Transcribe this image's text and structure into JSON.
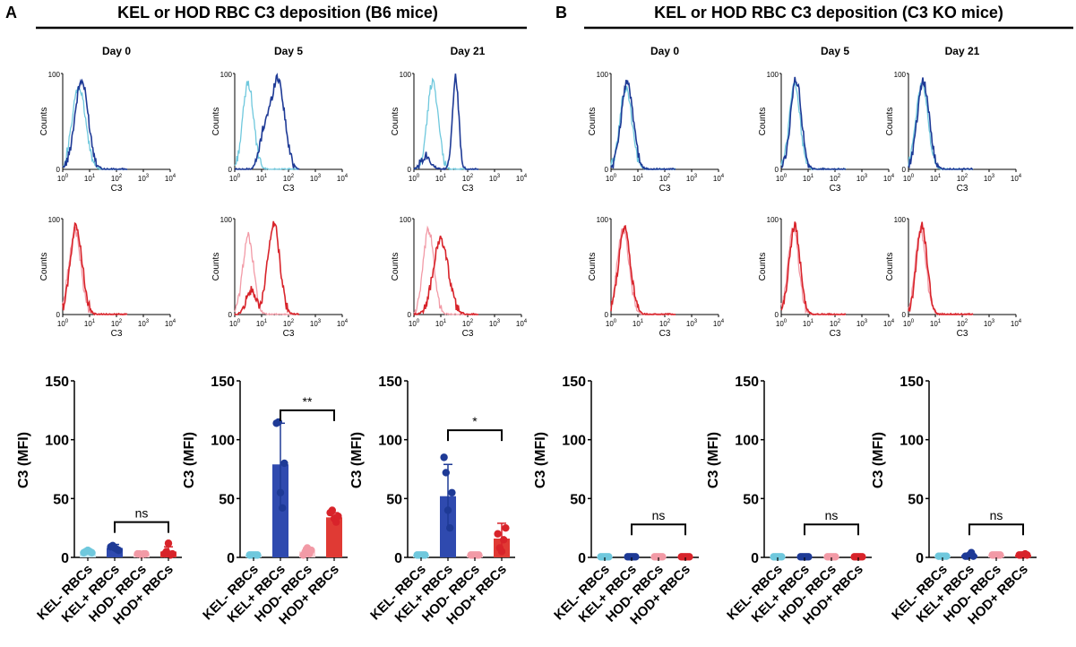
{
  "panels": [
    {
      "letter": "A",
      "title": "KEL or HOD RBC C3 deposition (B6 mice)"
    },
    {
      "letter": "B",
      "title": "KEL or HOD RBC C3 deposition (C3 KO mice)"
    }
  ],
  "colors": {
    "kel_neg": "#6fc8dd",
    "kel_pos": "#1e3a96",
    "hod_neg": "#f29aa6",
    "hod_pos": "#d8232a",
    "bar_kel_neg": "#c9eaf4",
    "bar_kel_pos": "#2f4aaf",
    "bar_hod_neg": "#fbd0d5",
    "bar_hod_pos": "#e03a34"
  },
  "histogram_axis": {
    "xlabel": "C3",
    "ylabel": "Counts",
    "y_ticks": [
      "0",
      "100"
    ],
    "x_tick_exponents": [
      "0",
      "1",
      "2",
      "3",
      "4"
    ],
    "x_tick_base": "10"
  },
  "chart_data": [
    {
      "type": "line",
      "panel": "A",
      "day": "Day 0",
      "cell": "KEL",
      "xscale": "log",
      "xlim": [
        1,
        10000
      ],
      "ylim": [
        0,
        100
      ],
      "xlabel": "C3",
      "ylabel": "Counts",
      "series": [
        {
          "name": "KEL- RBCs",
          "peak_log10": 0.6,
          "width": 0.25,
          "max": 85
        },
        {
          "name": "KEL+ RBCs",
          "peak_log10": 0.7,
          "width": 0.25,
          "max": 92
        }
      ]
    },
    {
      "type": "line",
      "panel": "A",
      "day": "Day 5",
      "cell": "KEL",
      "xscale": "log",
      "xlim": [
        1,
        10000
      ],
      "ylim": [
        0,
        100
      ],
      "xlabel": "C3",
      "ylabel": "Counts",
      "series": [
        {
          "name": "KEL- RBCs",
          "peak_log10": 0.5,
          "width": 0.2,
          "max": 90
        },
        {
          "name": "KEL+ RBCs",
          "peak_log10": 1.6,
          "width": 0.25,
          "max": 95,
          "shoulder_log10": 1.1,
          "shoulder_max": 35
        }
      ]
    },
    {
      "type": "line",
      "panel": "A",
      "day": "Day 21",
      "cell": "KEL",
      "xscale": "log",
      "xlim": [
        1,
        10000
      ],
      "ylim": [
        0,
        100
      ],
      "xlabel": "C3",
      "ylabel": "Counts",
      "series": [
        {
          "name": "KEL- RBCs",
          "peak_log10": 0.7,
          "width": 0.2,
          "max": 92
        },
        {
          "name": "KEL+ RBCs",
          "peak_log10": 1.55,
          "width": 0.12,
          "max": 95,
          "shoulder_log10": 0.45,
          "shoulder_max": 15
        }
      ]
    },
    {
      "type": "line",
      "panel": "A",
      "day": "Day 0",
      "cell": "HOD",
      "xscale": "log",
      "xlim": [
        1,
        10000
      ],
      "ylim": [
        0,
        100
      ],
      "xlabel": "C3",
      "ylabel": "Counts",
      "series": [
        {
          "name": "HOD- RBCs",
          "peak_log10": 0.45,
          "width": 0.22,
          "max": 88
        },
        {
          "name": "HOD+ RBCs",
          "peak_log10": 0.5,
          "width": 0.22,
          "max": 93
        }
      ]
    },
    {
      "type": "line",
      "panel": "A",
      "day": "Day 5",
      "cell": "HOD",
      "xscale": "log",
      "xlim": [
        1,
        10000
      ],
      "ylim": [
        0,
        100
      ],
      "xlabel": "C3",
      "ylabel": "Counts",
      "series": [
        {
          "name": "HOD- RBCs",
          "peak_log10": 0.5,
          "width": 0.2,
          "max": 82
        },
        {
          "name": "HOD+ RBCs",
          "peak_log10": 1.45,
          "width": 0.22,
          "max": 96,
          "shoulder_log10": 0.6,
          "shoulder_max": 25
        }
      ]
    },
    {
      "type": "line",
      "panel": "A",
      "day": "Day 21",
      "cell": "HOD",
      "xscale": "log",
      "xlim": [
        1,
        10000
      ],
      "ylim": [
        0,
        100
      ],
      "xlabel": "C3",
      "ylabel": "Counts",
      "series": [
        {
          "name": "HOD- RBCs",
          "peak_log10": 0.55,
          "width": 0.2,
          "max": 88
        },
        {
          "name": "HOD+ RBCs",
          "peak_log10": 1.0,
          "width": 0.28,
          "max": 78
        }
      ]
    },
    {
      "type": "line",
      "panel": "B",
      "day": "Day 0",
      "cell": "KEL",
      "xscale": "log",
      "xlim": [
        1,
        10000
      ],
      "ylim": [
        0,
        100
      ],
      "xlabel": "C3",
      "ylabel": "Counts",
      "series": [
        {
          "name": "KEL- RBCs",
          "peak_log10": 0.55,
          "width": 0.22,
          "max": 85
        },
        {
          "name": "KEL+ RBCs",
          "peak_log10": 0.6,
          "width": 0.22,
          "max": 92
        }
      ]
    },
    {
      "type": "line",
      "panel": "B",
      "day": "Day 5",
      "cell": "KEL",
      "xscale": "log",
      "xlim": [
        1,
        10000
      ],
      "ylim": [
        0,
        100
      ],
      "xlabel": "C3",
      "ylabel": "Counts",
      "series": [
        {
          "name": "KEL- RBCs",
          "peak_log10": 0.5,
          "width": 0.2,
          "max": 88
        },
        {
          "name": "KEL+ RBCs",
          "peak_log10": 0.55,
          "width": 0.2,
          "max": 94
        }
      ]
    },
    {
      "type": "line",
      "panel": "B",
      "day": "Day 21",
      "cell": "KEL",
      "xscale": "log",
      "xlim": [
        1,
        10000
      ],
      "ylim": [
        0,
        100
      ],
      "xlabel": "C3",
      "ylabel": "Counts",
      "series": [
        {
          "name": "KEL- RBCs",
          "peak_log10": 0.5,
          "width": 0.22,
          "max": 90
        },
        {
          "name": "KEL+ RBCs",
          "peak_log10": 0.55,
          "width": 0.22,
          "max": 92
        }
      ]
    },
    {
      "type": "line",
      "panel": "B",
      "day": "Day 0",
      "cell": "HOD",
      "xscale": "log",
      "xlim": [
        1,
        10000
      ],
      "ylim": [
        0,
        100
      ],
      "xlabel": "C3",
      "ylabel": "Counts",
      "series": [
        {
          "name": "HOD- RBCs",
          "peak_log10": 0.45,
          "width": 0.22,
          "max": 88
        },
        {
          "name": "HOD+ RBCs",
          "peak_log10": 0.5,
          "width": 0.22,
          "max": 90
        }
      ]
    },
    {
      "type": "line",
      "panel": "B",
      "day": "Day 5",
      "cell": "HOD",
      "xscale": "log",
      "xlim": [
        1,
        10000
      ],
      "ylim": [
        0,
        100
      ],
      "xlabel": "C3",
      "ylabel": "Counts",
      "series": [
        {
          "name": "HOD- RBCs",
          "peak_log10": 0.45,
          "width": 0.2,
          "max": 90
        },
        {
          "name": "HOD+ RBCs",
          "peak_log10": 0.5,
          "width": 0.2,
          "max": 92
        }
      ]
    },
    {
      "type": "line",
      "panel": "B",
      "day": "Day 21",
      "cell": "HOD",
      "xscale": "log",
      "xlim": [
        1,
        10000
      ],
      "ylim": [
        0,
        100
      ],
      "xlabel": "C3",
      "ylabel": "Counts",
      "series": [
        {
          "name": "HOD- RBCs",
          "peak_log10": 0.45,
          "width": 0.2,
          "max": 88
        },
        {
          "name": "HOD+ RBCs",
          "peak_log10": 0.5,
          "width": 0.2,
          "max": 92
        }
      ]
    },
    {
      "type": "bar",
      "panel": "A",
      "day": "Day 0",
      "ylabel": "C3 (MFI)",
      "ylim": [
        0,
        150
      ],
      "yticks": [
        0,
        50,
        100,
        150
      ],
      "categories": [
        "KEL- RBCs",
        "KEL+ RBCs",
        "HOD- RBCs",
        "HOD+ RBCs"
      ],
      "values": [
        5,
        8,
        3,
        5
      ],
      "errors": [
        1,
        3,
        1,
        4
      ],
      "points": [
        [
          4,
          5,
          6,
          5,
          4
        ],
        [
          9,
          10,
          8,
          7,
          6
        ],
        [
          3,
          3,
          2,
          3,
          3
        ],
        [
          3,
          5,
          12,
          2,
          3
        ]
      ],
      "comparison": {
        "from": 1,
        "to": 3,
        "label": "ns",
        "level": 30
      }
    },
    {
      "type": "bar",
      "panel": "A",
      "day": "Day 5",
      "ylabel": "C3 (MFI)",
      "ylim": [
        0,
        150
      ],
      "yticks": [
        0,
        50,
        100,
        150
      ],
      "categories": [
        "KEL- RBCs",
        "KEL+ RBCs",
        "HOD- RBCs",
        "HOD+ RBCs"
      ],
      "values": [
        2,
        79,
        5,
        34
      ],
      "errors": [
        1,
        35,
        3,
        4
      ],
      "points": [
        [
          2,
          2,
          2,
          2,
          2
        ],
        [
          114,
          115,
          55,
          42,
          80
        ],
        [
          2,
          5,
          8,
          3,
          6
        ],
        [
          38,
          40,
          33,
          30,
          35
        ]
      ],
      "comparison": {
        "from": 1,
        "to": 3,
        "label": "**",
        "level": 125
      }
    },
    {
      "type": "bar",
      "panel": "A",
      "day": "Day 21",
      "ylabel": "C3 (MFI)",
      "ylim": [
        0,
        150
      ],
      "yticks": [
        0,
        50,
        100,
        150
      ],
      "categories": [
        "KEL- RBCs",
        "KEL+ RBCs",
        "HOD- RBCs",
        "HOD+ RBCs"
      ],
      "values": [
        2,
        52,
        2,
        16
      ],
      "errors": [
        1,
        27,
        1,
        13
      ],
      "points": [
        [
          2,
          2,
          2,
          2,
          2
        ],
        [
          85,
          72,
          40,
          25,
          55
        ],
        [
          2,
          2,
          2,
          2,
          2
        ],
        [
          20,
          8,
          5,
          15,
          25
        ]
      ],
      "comparison": {
        "from": 1,
        "to": 3,
        "label": "*",
        "level": 108
      }
    },
    {
      "type": "bar",
      "panel": "B",
      "day": "Day 0",
      "ylabel": "C3 (MFI)",
      "ylim": [
        0,
        150
      ],
      "yticks": [
        0,
        50,
        100,
        150
      ],
      "categories": [
        "KEL- RBCs",
        "KEL+ RBCs",
        "HOD- RBCs",
        "HOD+ RBCs"
      ],
      "values": [
        0.5,
        0.5,
        0.5,
        0.5
      ],
      "errors": [
        0.2,
        0.2,
        0.2,
        0.2
      ],
      "points": [
        [
          0.5,
          0.5,
          0.5,
          0.5,
          0.5
        ],
        [
          0.5,
          0.5,
          0.5,
          0.5,
          0.5
        ],
        [
          0.5,
          0.5,
          0.5,
          0.5,
          0.5
        ],
        [
          0.5,
          0.5,
          0.5,
          0.5,
          0.5
        ]
      ],
      "comparison": {
        "from": 1,
        "to": 3,
        "label": "ns",
        "level": 28
      }
    },
    {
      "type": "bar",
      "panel": "B",
      "day": "Day 5",
      "ylabel": "C3 (MFI)",
      "ylim": [
        0,
        150
      ],
      "yticks": [
        0,
        50,
        100,
        150
      ],
      "categories": [
        "KEL- RBCs",
        "KEL+ RBCs",
        "HOD- RBCs",
        "HOD+ RBCs"
      ],
      "values": [
        0.5,
        0.5,
        0.5,
        0.5
      ],
      "errors": [
        0.2,
        0.2,
        0.2,
        0.2
      ],
      "points": [
        [
          0.5,
          0.5,
          0.5,
          0.5,
          0.5
        ],
        [
          0.5,
          0.5,
          0.5,
          0.5,
          0.5
        ],
        [
          0.5,
          0.5,
          0.5,
          0.5,
          0.5
        ],
        [
          0.5,
          0.5,
          0.5,
          0.5,
          0.5
        ]
      ],
      "comparison": {
        "from": 1,
        "to": 3,
        "label": "ns",
        "level": 28
      }
    },
    {
      "type": "bar",
      "panel": "B",
      "day": "Day 21",
      "ylabel": "C3 (MFI)",
      "ylim": [
        0,
        150
      ],
      "yticks": [
        0,
        50,
        100,
        150
      ],
      "categories": [
        "KEL- RBCs",
        "KEL+ RBCs",
        "HOD- RBCs",
        "HOD+ RBCs"
      ],
      "values": [
        1,
        2,
        2,
        2
      ],
      "errors": [
        0.5,
        1.5,
        0.5,
        0.5
      ],
      "points": [
        [
          1,
          1,
          1,
          1,
          1
        ],
        [
          1,
          1,
          2,
          4,
          1
        ],
        [
          2,
          2,
          2,
          2,
          2
        ],
        [
          2,
          2,
          2,
          3,
          2
        ]
      ],
      "comparison": {
        "from": 1,
        "to": 3,
        "label": "ns",
        "level": 28
      }
    }
  ]
}
